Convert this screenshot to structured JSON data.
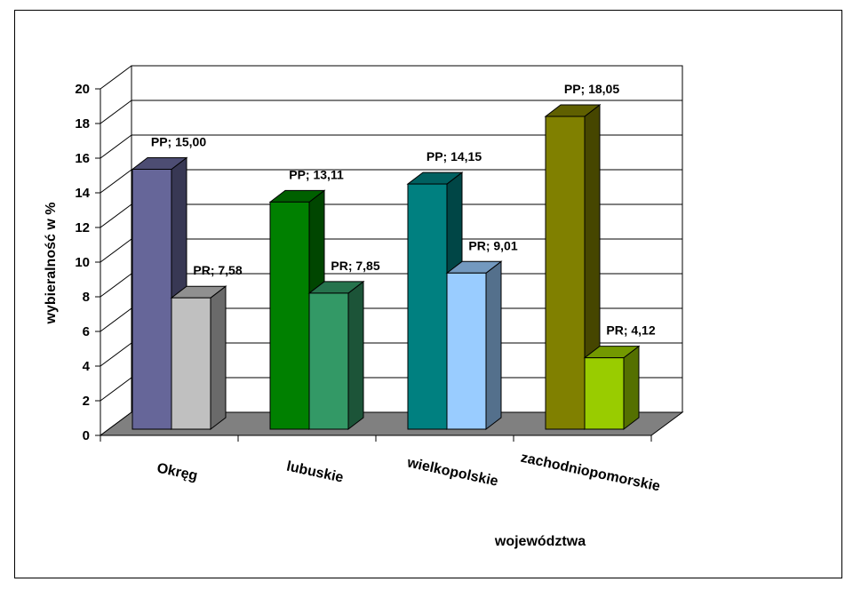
{
  "chart_data": {
    "type": "bar",
    "style": "3d-clustered",
    "categories": [
      "Okręg",
      "lubuskie",
      "wielkopolskie",
      "zachodniopomorskie"
    ],
    "series": [
      {
        "name": "PP",
        "values": [
          15.0,
          13.11,
          14.15,
          18.05
        ],
        "labels": [
          "PP; 15,00",
          "PP; 13,11",
          "PP; 14,15",
          "PP; 18,05"
        ],
        "colors": [
          "#666699",
          "#008000",
          "#008080",
          "#808000"
        ]
      },
      {
        "name": "PR",
        "values": [
          7.58,
          7.85,
          9.01,
          4.12
        ],
        "labels": [
          "PR; 7,58",
          "PR; 7,85",
          "PR; 9,01",
          "PR; 4,12"
        ],
        "colors": [
          "#C0C0C0",
          "#339966",
          "#99CCFF",
          "#99CC00"
        ]
      }
    ],
    "y_ticks": [
      "0",
      "2",
      "4",
      "6",
      "8",
      "10",
      "12",
      "14",
      "16",
      "18",
      "20"
    ],
    "ylim": [
      0,
      20
    ],
    "xlabel": "województwa",
    "ylabel": "wybieralność w %",
    "grid": true,
    "legend": "none",
    "floor_color": "#808080"
  }
}
